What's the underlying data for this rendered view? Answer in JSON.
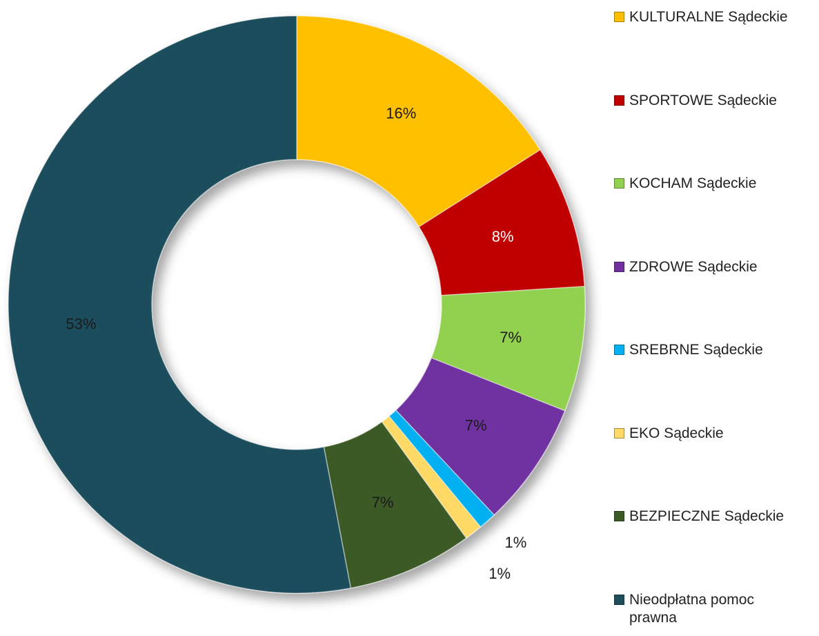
{
  "chart_data": {
    "type": "donut",
    "categories": [
      "KULTURALNE Sądeckie",
      "SPORTOWE Sądeckie",
      "KOCHAM Sądeckie",
      "ZDROWE Sądeckie",
      "SREBRNE Sądeckie",
      "EKO Sądeckie",
      "BEZPIECZNE Sądeckie",
      "Nieodpłatna pomoc prawna"
    ],
    "values": [
      16,
      8,
      7,
      7,
      1,
      1,
      7,
      53
    ],
    "value_labels": [
      "16%",
      "8%",
      "7%",
      "7%",
      "1%",
      "1%",
      "7%",
      "53%"
    ],
    "colors": [
      "#FFC000",
      "#C00000",
      "#92D050",
      "#7030A0",
      "#00B0F0",
      "#FFD966",
      "#3A5A26",
      "#1F4E5B"
    ],
    "label_colors": [
      "#1a1a1a",
      "#ffffff",
      "#1a1a1a",
      "#1a1a1a",
      "#1a1a1a",
      "#1a1a1a",
      "#1a1a1a",
      "#1a1a1a"
    ],
    "legend": "right"
  }
}
